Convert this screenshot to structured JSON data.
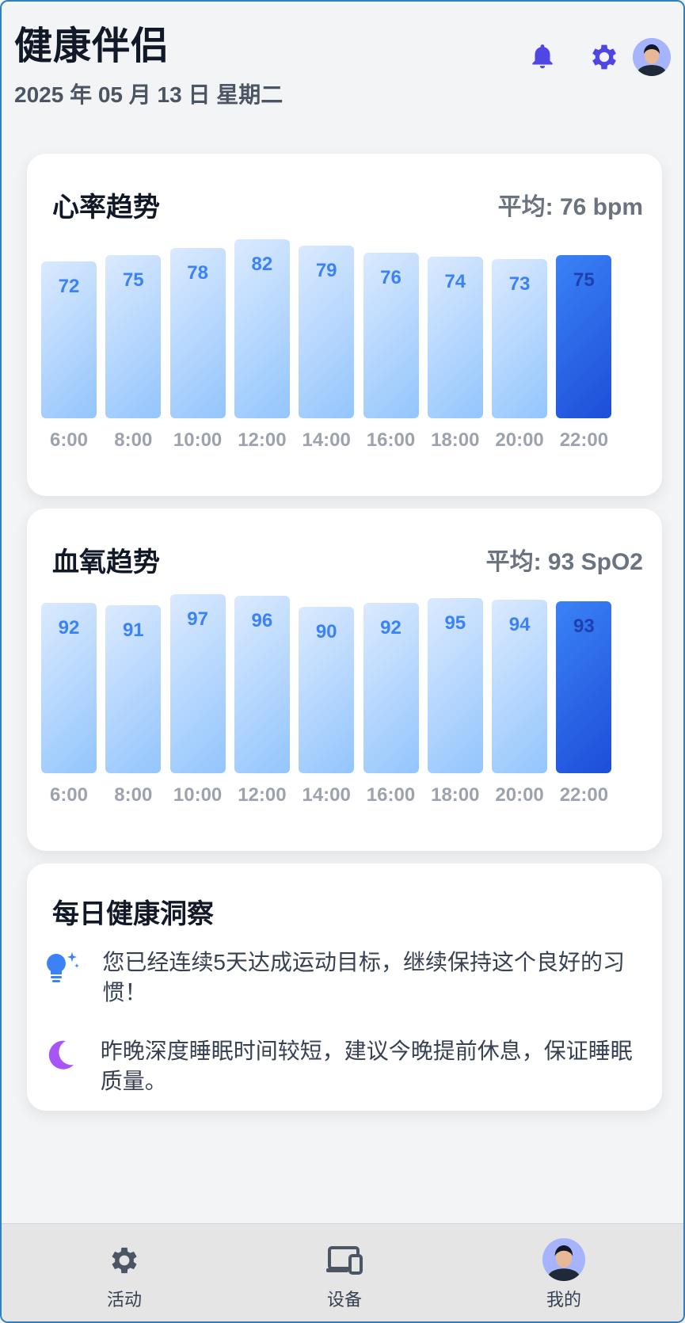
{
  "header": {
    "title": "健康伴侣",
    "date": "2025 年 05 月 13 日 星期二",
    "icons": [
      "bell-icon",
      "gear-icon",
      "user-avatar"
    ]
  },
  "heart_rate": {
    "title": "心率趋势",
    "average": "平均: 76 bpm"
  },
  "blood_oxygen": {
    "title": "血氧趋势",
    "average": "平均: 93 SpO2"
  },
  "insights": {
    "title": "每日健康洞察",
    "items": [
      {
        "icon": "lightbulb-icon",
        "text": "您已经连续5天达成运动目标，继续保持这个良好的习惯！"
      },
      {
        "icon": "moon-icon",
        "text": "昨晚深度睡眠时间较短，建议今晚提前休息，保证睡眠质量。"
      }
    ]
  },
  "bottom_nav": {
    "items": [
      {
        "label": "活动",
        "icon": "gear-icon"
      },
      {
        "label": "设备",
        "icon": "devices-icon"
      },
      {
        "label": "我的",
        "icon": "user-avatar"
      }
    ]
  },
  "colors": {
    "accent": "#1d4ed8",
    "bar_light": "#bfdbfe",
    "icon_purple": "#4f46e5",
    "moon": "#a855f7",
    "bulb": "#3b82f6"
  },
  "chart_data": [
    {
      "type": "bar",
      "title": "心率趋势",
      "categories": [
        "6:00",
        "8:00",
        "10:00",
        "12:00",
        "14:00",
        "16:00",
        "18:00",
        "20:00",
        "22:00"
      ],
      "values": [
        72,
        75,
        78,
        82,
        79,
        76,
        74,
        73,
        75
      ],
      "highlighted_index": 8
    },
    {
      "type": "bar",
      "title": "血氧趋势",
      "categories": [
        "6:00",
        "8:00",
        "10:00",
        "12:00",
        "14:00",
        "16:00",
        "18:00",
        "20:00",
        "22:00"
      ],
      "values": [
        92,
        91,
        97,
        96,
        90,
        92,
        95,
        94,
        93
      ],
      "highlighted_index": 8
    }
  ]
}
